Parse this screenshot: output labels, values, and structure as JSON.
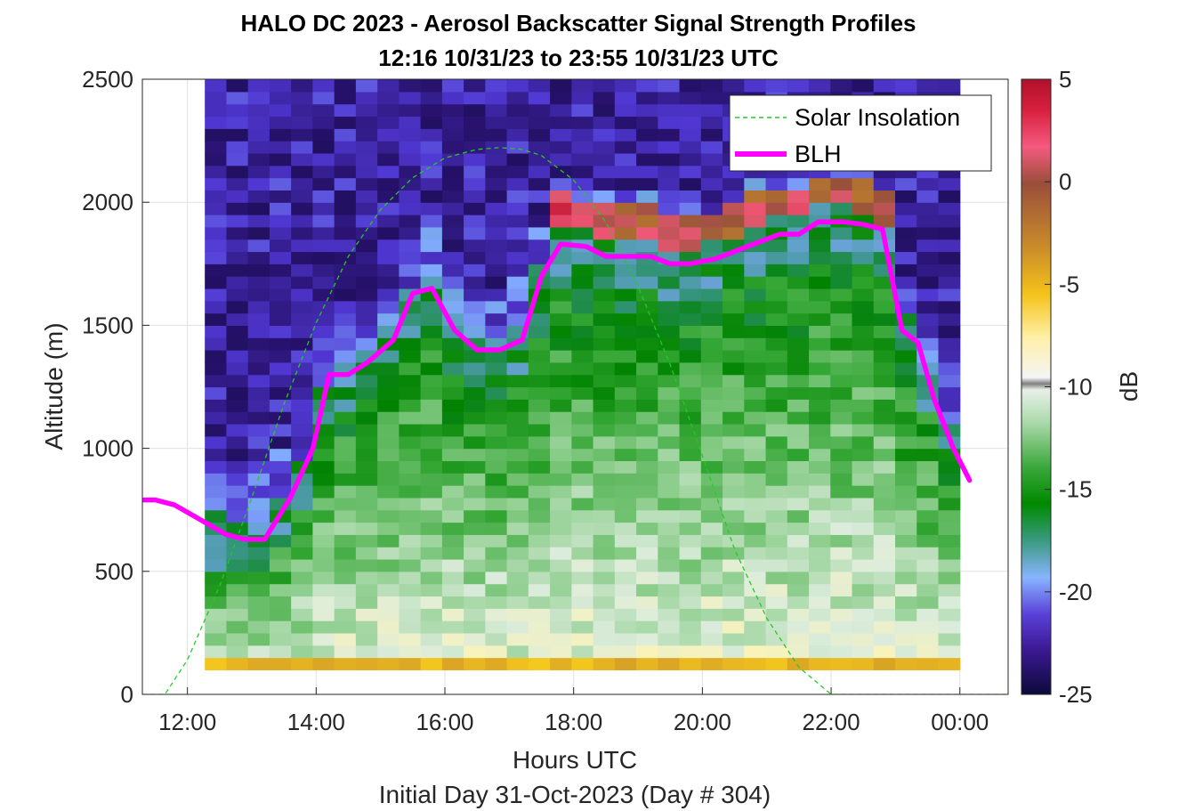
{
  "chart_data": {
    "type": "heatmap",
    "title": "HALO DC 2023 - Aerosol Backscatter Signal Strength Profiles",
    "subtitle": "12:16 10/31/23 to 23:55 10/31/23  UTC",
    "xlabel": "Hours UTC",
    "footer": "Initial Day 31-Oct-2023 (Day # 304)",
    "ylabel": "Altitude (m)",
    "xlim": [
      11.3,
      24.75
    ],
    "ylim": [
      0,
      2500
    ],
    "x_ticks": [
      12,
      14,
      16,
      18,
      20,
      22,
      24
    ],
    "x_tick_labels": [
      "12:00",
      "14:00",
      "16:00",
      "18:00",
      "20:00",
      "22:00",
      "00:00"
    ],
    "y_ticks": [
      0,
      500,
      1000,
      1500,
      2000,
      2500
    ],
    "y_tick_labels": [
      "0",
      "500",
      "1000",
      "1500",
      "2000",
      "2500"
    ],
    "colorbar": {
      "label": "dB",
      "range": [
        -25,
        5
      ],
      "ticks": [
        5,
        0,
        -5,
        -10,
        -15,
        -20,
        -25
      ],
      "tick_labels": [
        "5",
        "0",
        "-5",
        "-10",
        "-15",
        "-20",
        "-25"
      ]
    },
    "grid": true,
    "legend": {
      "placement": "top-right",
      "entries": [
        {
          "label": "Solar Insolation",
          "color": "#22cc22",
          "style": "dashed"
        },
        {
          "label": "BLH",
          "color": "#ff00ff",
          "style": "solid"
        }
      ]
    },
    "heatmap_extent": {
      "x_start": 12.27,
      "x_end": 24.0,
      "y_start": 100,
      "y_end": 2500,
      "columns": 35,
      "bin_height_m": 50
    },
    "series": [
      {
        "name": "BLH",
        "color": "#ff00ff",
        "x": [
          11.3,
          11.5,
          11.8,
          12.2,
          12.6,
          12.9,
          13.2,
          13.6,
          13.95,
          14.2,
          14.5,
          14.8,
          15.2,
          15.5,
          15.8,
          16.15,
          16.5,
          16.85,
          17.2,
          17.5,
          17.8,
          18.2,
          18.5,
          18.8,
          19.2,
          19.5,
          19.8,
          20.2,
          20.5,
          20.8,
          21.2,
          21.5,
          21.8,
          22.2,
          22.5,
          22.8,
          23.1,
          23.35,
          23.6,
          23.9,
          24.15
        ],
        "y": [
          790,
          790,
          770,
          710,
          650,
          630,
          630,
          800,
          1000,
          1300,
          1300,
          1350,
          1440,
          1630,
          1650,
          1480,
          1400,
          1400,
          1440,
          1700,
          1830,
          1820,
          1780,
          1780,
          1780,
          1750,
          1750,
          1770,
          1800,
          1830,
          1870,
          1870,
          1920,
          1920,
          1910,
          1890,
          1480,
          1430,
          1200,
          1000,
          870
        ]
      },
      {
        "name": "Solar Insolation",
        "color": "#22cc22",
        "x": [
          11.3,
          11.65,
          12.0,
          12.5,
          13.0,
          13.5,
          14.0,
          14.5,
          15.0,
          15.5,
          16.0,
          16.5,
          16.85,
          17.2,
          17.5,
          18.0,
          18.5,
          19.0,
          19.5,
          20.0,
          20.5,
          21.0,
          21.5,
          22.0,
          22.05,
          22.5,
          23.0,
          23.5,
          24.0,
          24.75
        ],
        "y": [
          0,
          0,
          140,
          440,
          800,
          1180,
          1510,
          1780,
          1970,
          2100,
          2180,
          2215,
          2222,
          2215,
          2190,
          2090,
          1920,
          1660,
          1340,
          970,
          590,
          310,
          110,
          0,
          0,
          0,
          0,
          0,
          0,
          0
        ]
      }
    ]
  }
}
